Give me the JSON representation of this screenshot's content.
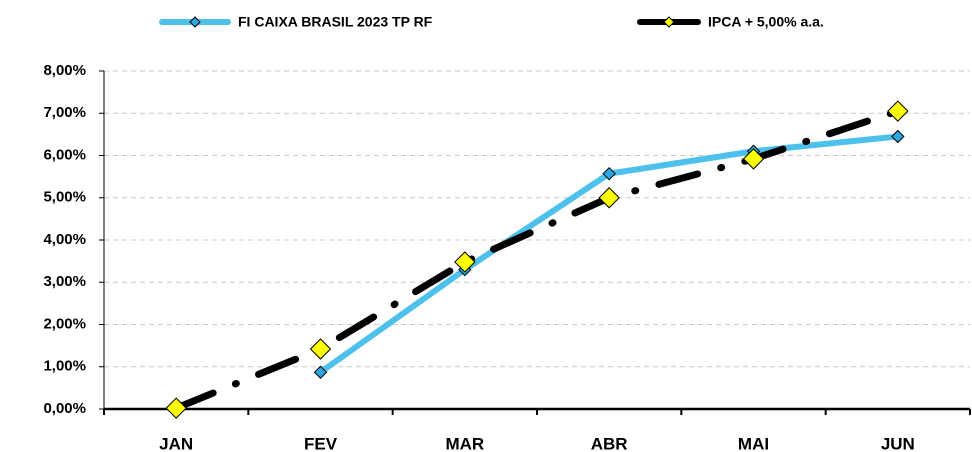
{
  "chart_data": {
    "type": "line",
    "categories": [
      "JAN",
      "FEV",
      "MAR",
      "ABR",
      "MAI",
      "JUN"
    ],
    "series": [
      {
        "name": "FI CAIXA BRASIL 2023 TP RF",
        "color": "#4dc0ec",
        "marker_color": "#2ea6df",
        "values": [
          null,
          0.87,
          3.3,
          5.57,
          6.1,
          6.45
        ]
      },
      {
        "name": "IPCA + 5,00% a.a.",
        "color": "#000000",
        "marker_color": "#ffff00",
        "dash": true,
        "values": [
          0.02,
          1.42,
          3.48,
          5.0,
          5.92,
          7.05
        ]
      }
    ],
    "ylim": [
      0,
      8
    ],
    "yticks": [
      {
        "value": 0,
        "label": "0,00%"
      },
      {
        "value": 1,
        "label": "1,00%"
      },
      {
        "value": 2,
        "label": "2,00%"
      },
      {
        "value": 3,
        "label": "3,00%"
      },
      {
        "value": 4,
        "label": "4,00%"
      },
      {
        "value": 5,
        "label": "5,00%"
      },
      {
        "value": 6,
        "label": "6,00%"
      },
      {
        "value": 7,
        "label": "7,00%"
      },
      {
        "value": 8,
        "label": "8,00%"
      }
    ],
    "grid": true,
    "legend": "top"
  }
}
